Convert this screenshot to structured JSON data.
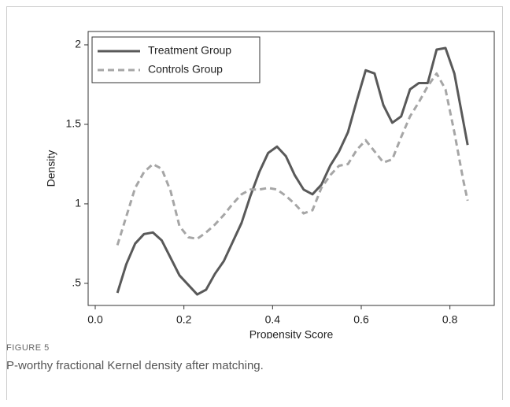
{
  "chart_data": {
    "type": "line",
    "xlabel": "Propensity Score",
    "ylabel": "Density",
    "x": [
      0.05,
      0.07,
      0.09,
      0.11,
      0.13,
      0.15,
      0.17,
      0.19,
      0.21,
      0.23,
      0.25,
      0.27,
      0.29,
      0.31,
      0.33,
      0.35,
      0.37,
      0.39,
      0.41,
      0.43,
      0.45,
      0.47,
      0.49,
      0.51,
      0.53,
      0.55,
      0.57,
      0.59,
      0.61,
      0.63,
      0.65,
      0.67,
      0.69,
      0.71,
      0.73,
      0.75,
      0.77,
      0.79,
      0.81,
      0.83,
      0.84
    ],
    "series": [
      {
        "name": "Treatment Group",
        "color": "#595959",
        "dash": false,
        "values": [
          0.44,
          0.62,
          0.75,
          0.81,
          0.82,
          0.77,
          0.66,
          0.55,
          0.49,
          0.43,
          0.46,
          0.56,
          0.64,
          0.76,
          0.88,
          1.05,
          1.2,
          1.32,
          1.36,
          1.3,
          1.18,
          1.09,
          1.06,
          1.12,
          1.24,
          1.33,
          1.45,
          1.65,
          1.84,
          1.82,
          1.62,
          1.51,
          1.55,
          1.72,
          1.76,
          1.76,
          1.97,
          1.98,
          1.82,
          1.52,
          1.37
        ]
      },
      {
        "name": "Controls Group",
        "color": "#a6a6a6",
        "dash": true,
        "values": [
          0.74,
          0.92,
          1.1,
          1.2,
          1.25,
          1.22,
          1.08,
          0.86,
          0.79,
          0.78,
          0.82,
          0.87,
          0.93,
          1.0,
          1.06,
          1.09,
          1.09,
          1.1,
          1.09,
          1.05,
          1.0,
          0.94,
          0.96,
          1.1,
          1.18,
          1.24,
          1.25,
          1.34,
          1.4,
          1.33,
          1.26,
          1.28,
          1.42,
          1.55,
          1.64,
          1.74,
          1.82,
          1.72,
          1.45,
          1.15,
          1.02
        ]
      }
    ],
    "xlim": [
      -0.016,
      0.9
    ],
    "ylim": [
      0.361,
      2.084
    ],
    "xticks": [
      {
        "value": 0,
        "label": "0.0"
      },
      0.2,
      0.4,
      0.6,
      0.8
    ],
    "yticks": [
      {
        "value": 0.5,
        "label": ".5"
      },
      1,
      1.5,
      2
    ],
    "legend": "top-left"
  },
  "figure": {
    "label": "FIGURE 5",
    "caption": "P-worthy fractional Kernel density after matching."
  }
}
